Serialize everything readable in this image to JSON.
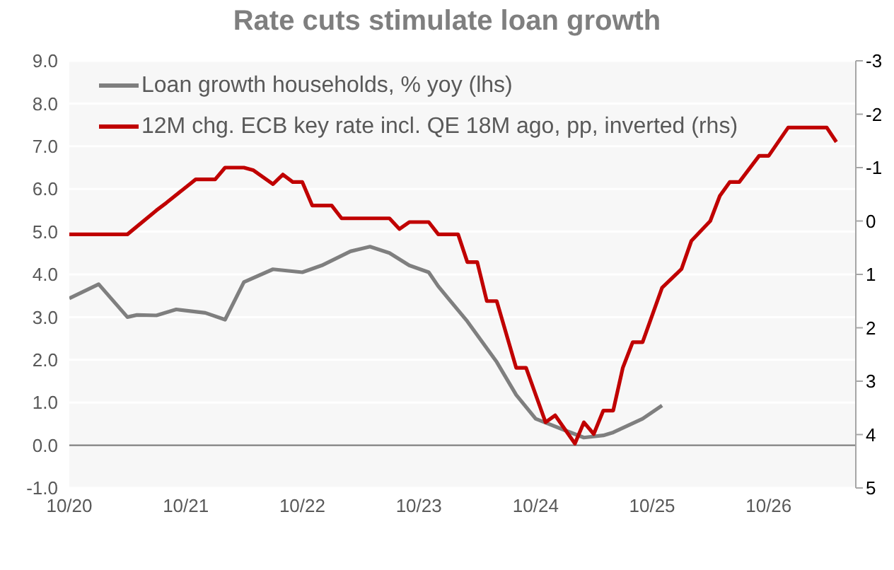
{
  "chart_data": {
    "type": "line",
    "title": "Rate cuts stimulate loan growth",
    "series": [
      {
        "name": "Loan growth households, % yoy (lhs)",
        "color": "#7f7f7f",
        "x": [
          "2020-10",
          "2020-12",
          "2021-01",
          "2021-04",
          "2021-05",
          "2021-07",
          "2021-09",
          "2021-12",
          "2022-02",
          "2022-04",
          "2022-07",
          "2022-10",
          "2022-12",
          "2023-03",
          "2023-05",
          "2023-07",
          "2023-09",
          "2023-11",
          "2023-12",
          "2024-01",
          "2024-03",
          "2024-06",
          "2024-08",
          "2024-10",
          "2025-01",
          "2025-03",
          "2025-05",
          "2025-06",
          "2025-09",
          "2025-11"
        ],
        "values": [
          3.44,
          3.66,
          3.77,
          3.0,
          3.05,
          3.04,
          3.18,
          3.1,
          2.94,
          3.82,
          4.12,
          4.05,
          4.21,
          4.54,
          4.65,
          4.5,
          4.21,
          4.05,
          3.72,
          3.44,
          2.9,
          1.95,
          1.18,
          0.62,
          0.35,
          0.18,
          0.23,
          0.3,
          0.62,
          0.93
        ]
      },
      {
        "name": "12M chg. ECB key rate incl. QE 18M ago, pp, inverted (rhs)",
        "color": "#c00000",
        "axis": "y2",
        "x": [
          "2020-10",
          "2021-04",
          "2021-07",
          "2021-08",
          "2021-11",
          "2022-01",
          "2022-02",
          "2022-04",
          "2022-05",
          "2022-07",
          "2022-08",
          "2022-09",
          "2022-10",
          "2022-11",
          "2023-01",
          "2023-02",
          "2023-07",
          "2023-08",
          "2023-09",
          "2023-11",
          "2023-12",
          "2024-02",
          "2024-03",
          "2024-04",
          "2024-05",
          "2024-06",
          "2024-08",
          "2024-09",
          "2024-11",
          "2024-12",
          "2025-02",
          "2025-03",
          "2025-04",
          "2025-05",
          "2025-06",
          "2025-07",
          "2025-08",
          "2025-09",
          "2025-11",
          "2026-01",
          "2026-02",
          "2026-04",
          "2026-05",
          "2026-06",
          "2026-07",
          "2026-09",
          "2026-10",
          "2026-12",
          "2027-04",
          "2027-05"
        ],
        "values": [
          0.25,
          0.25,
          -0.2,
          -0.34,
          -0.78,
          -0.78,
          -1.0,
          -1.0,
          -0.95,
          -0.69,
          -0.87,
          -0.73,
          -0.73,
          -0.29,
          -0.29,
          -0.05,
          -0.05,
          0.15,
          0.02,
          0.02,
          0.25,
          0.25,
          0.77,
          0.77,
          1.5,
          1.5,
          2.75,
          2.75,
          3.77,
          3.64,
          4.17,
          3.77,
          3.99,
          3.55,
          3.55,
          2.75,
          2.27,
          2.27,
          1.25,
          0.9,
          0.37,
          0.0,
          -0.47,
          -0.73,
          -0.73,
          -1.22,
          -1.22,
          -1.75,
          -1.75,
          -1.48
        ]
      }
    ],
    "xlim": [
      "2020-10",
      "2027-07"
    ],
    "xticks": [
      {
        "value": "2020-10",
        "label": "10/20"
      },
      {
        "value": "2021-10",
        "label": "10/21"
      },
      {
        "value": "2022-10",
        "label": "10/22"
      },
      {
        "value": "2023-10",
        "label": "10/23"
      },
      {
        "value": "2024-10",
        "label": "10/24"
      },
      {
        "value": "2025-10",
        "label": "10/25"
      },
      {
        "value": "2026-10",
        "label": "10/26"
      }
    ],
    "ylim": [
      -1,
      9
    ],
    "yticks": [
      {
        "value": -1,
        "label": "-1.0"
      },
      {
        "value": 0,
        "label": "0.0"
      },
      {
        "value": 1,
        "label": "1.0"
      },
      {
        "value": 2,
        "label": "2.0"
      },
      {
        "value": 3,
        "label": "3.0"
      },
      {
        "value": 4,
        "label": "4.0"
      },
      {
        "value": 5,
        "label": "5.0"
      },
      {
        "value": 6,
        "label": "6.0"
      },
      {
        "value": 7,
        "label": "7.0"
      },
      {
        "value": 8,
        "label": "8.0"
      },
      {
        "value": 9,
        "label": "9.0"
      }
    ],
    "y2lim": [
      5,
      -3
    ],
    "y2ticks": [
      5,
      4,
      3,
      2,
      1,
      0,
      -1,
      -2,
      -3
    ],
    "ref_lines": [
      {
        "axis": "y",
        "value": 0,
        "color": "#7f7f7f"
      }
    ],
    "grid": "y",
    "legend": "top left",
    "marker": "none",
    "line_style": "solid"
  }
}
